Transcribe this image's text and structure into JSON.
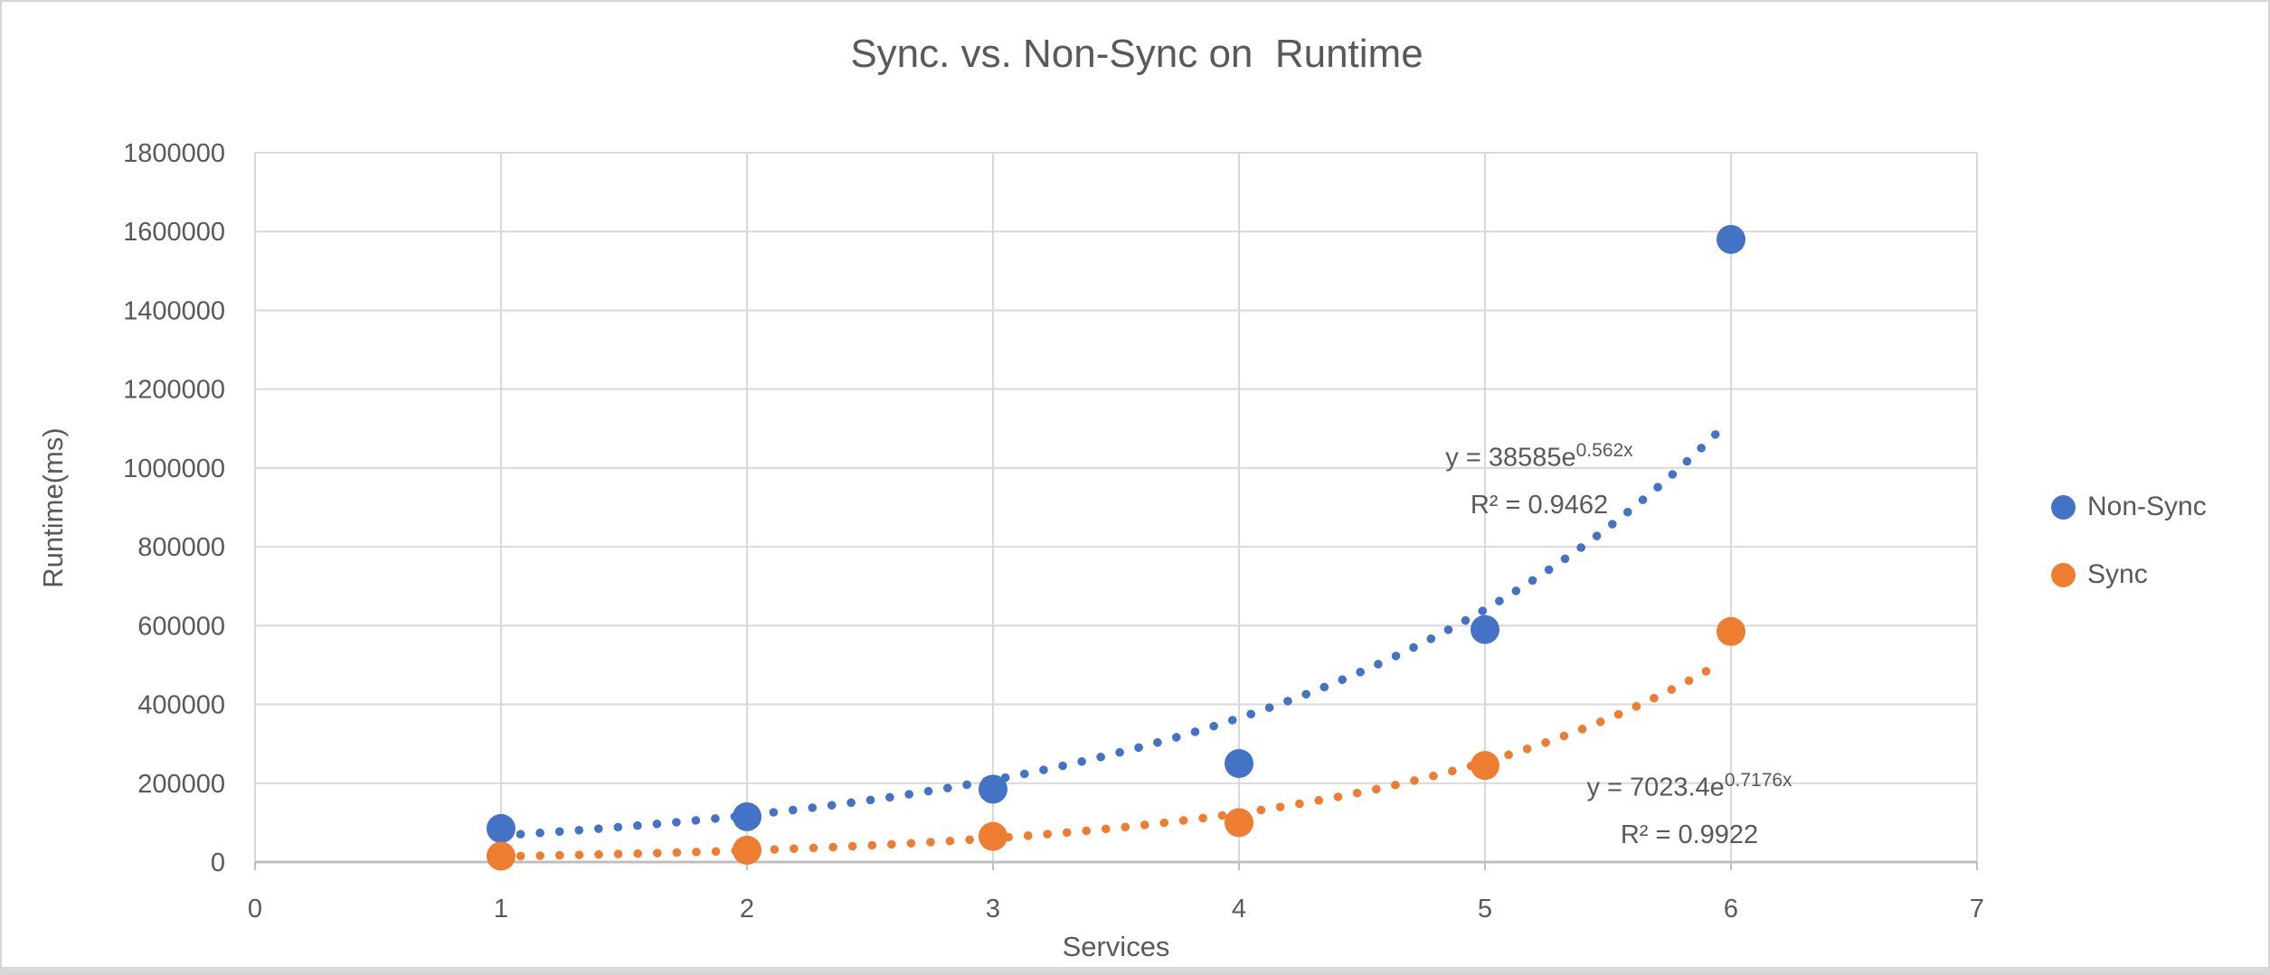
{
  "chart": {
    "title": "Sync. vs. Non-Sync on  Runtime",
    "x_axis": {
      "title": "Services"
    },
    "y_axis": {
      "title": "Runtime(ms)"
    }
  },
  "legend": {
    "items": [
      {
        "label": "Non-Sync",
        "color": "#4472C4"
      },
      {
        "label": "Sync",
        "color": "#ED7D31"
      }
    ]
  },
  "annotations": {
    "nonsync": {
      "equation_base": "y = 38585e",
      "equation_exponent": "0.562x",
      "r_squared": "R² = 0.9462"
    },
    "sync": {
      "equation_base": "y = 7023.4e",
      "equation_exponent": "0.7176x",
      "r_squared": "R² = 0.9922"
    }
  },
  "colors": {
    "text": "#595959",
    "gridline": "#D9D9D9",
    "axis_line": "#BFBFBF",
    "nonsync": "#4472C4",
    "sync": "#ED7D31"
  },
  "chart_data": {
    "type": "scatter",
    "title": "Sync. vs. Non-Sync on  Runtime",
    "xlabel": "Services",
    "ylabel": "Runtime(ms)",
    "xlim": [
      0,
      7
    ],
    "ylim": [
      0,
      1800000
    ],
    "x_ticks": [
      0,
      1,
      2,
      3,
      4,
      5,
      6,
      7
    ],
    "y_ticks": [
      0,
      200000,
      400000,
      600000,
      800000,
      1000000,
      1200000,
      1400000,
      1600000,
      1800000
    ],
    "grid": true,
    "legend_position": "right",
    "series": [
      {
        "name": "Non-Sync",
        "color": "#4472C4",
        "x": [
          1,
          2,
          3,
          4,
          5,
          6
        ],
        "y": [
          85000,
          115000,
          185000,
          250000,
          590000,
          1580000
        ],
        "trendline": {
          "type": "exponential",
          "a": 38585,
          "b": 0.562,
          "r2": 0.9462,
          "x_start": 1.0,
          "x_end": 5.97
        }
      },
      {
        "name": "Sync",
        "color": "#ED7D31",
        "x": [
          1,
          2,
          3,
          4,
          5,
          6
        ],
        "y": [
          15000,
          30000,
          65000,
          100000,
          245000,
          585000
        ],
        "trendline": {
          "type": "exponential",
          "a": 7023.4,
          "b": 0.7176,
          "r2": 0.9922,
          "x_start": 1.0,
          "x_end": 5.97
        }
      }
    ]
  }
}
